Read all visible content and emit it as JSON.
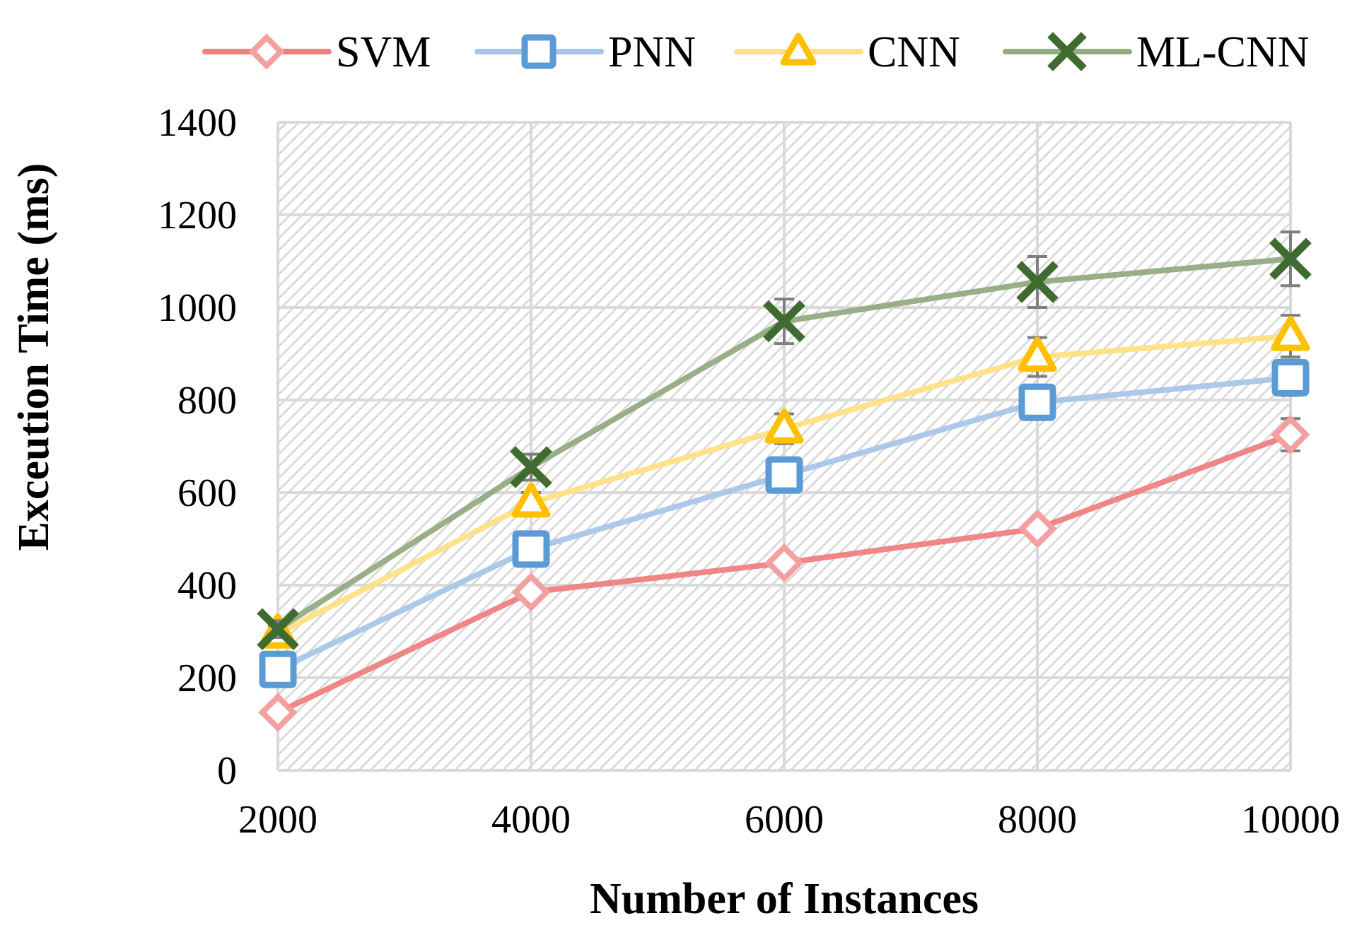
{
  "chart_data": {
    "type": "line",
    "title": "",
    "xlabel": "Number of Instances",
    "ylabel": "Exceution Time (ms)",
    "x": [
      2000,
      4000,
      6000,
      8000,
      10000
    ],
    "x_tick_labels": [
      "2000",
      "4000",
      "6000",
      "8000",
      "10000"
    ],
    "ylim": [
      0,
      1400
    ],
    "y_ticks": [
      0,
      200,
      400,
      600,
      800,
      1000,
      1200,
      1400
    ],
    "y_tick_labels": [
      "0",
      "200",
      "400",
      "600",
      "800",
      "1000",
      "1200",
      "1400"
    ],
    "grid": true,
    "plot_background": "diagonal-hatch",
    "legend_position": "top",
    "series": [
      {
        "name": "SVM",
        "marker": "diamond",
        "color": "#f08080",
        "marker_color": "#f4a0a0",
        "values": [
          125,
          385,
          448,
          522,
          725
        ],
        "errors": [
          10,
          12,
          14,
          18,
          35
        ]
      },
      {
        "name": "PNN",
        "marker": "square",
        "color": "#a9c6e8",
        "marker_color": "#5b9bd5",
        "values": [
          218,
          478,
          638,
          795,
          848
        ],
        "errors": [
          14,
          18,
          24,
          30,
          38
        ]
      },
      {
        "name": "CNN",
        "marker": "triangle",
        "color": "#ffe083",
        "marker_color": "#ffc000",
        "values": [
          295,
          578,
          738,
          893,
          938
        ],
        "errors": [
          16,
          22,
          32,
          42,
          45
        ]
      },
      {
        "name": "ML-CNN",
        "marker": "x",
        "color": "#93ab82",
        "marker_color": "#3f6b30",
        "values": [
          305,
          655,
          970,
          1055,
          1105
        ],
        "errors": [
          18,
          28,
          48,
          55,
          58
        ]
      }
    ]
  }
}
